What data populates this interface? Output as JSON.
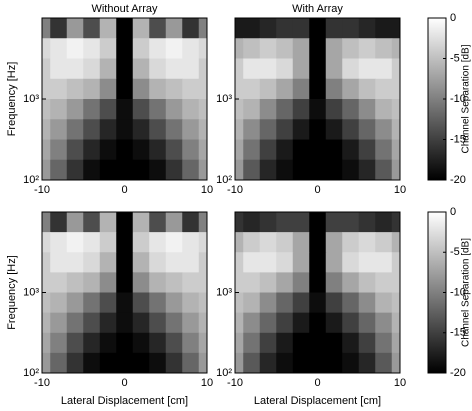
{
  "chart_data": [
    {
      "type": "heatmap",
      "title": "Without Array",
      "ylabel": "Frequency [Hz]",
      "xlim": [
        -10,
        10
      ],
      "xticks": [
        -10,
        0,
        10
      ],
      "ylim": [
        100,
        10000
      ],
      "log_y": true,
      "yticks": [
        {
          "value": 100,
          "label": "10²"
        },
        {
          "value": 1000,
          "label": "10³"
        }
      ],
      "x": [
        -10,
        -8,
        -6,
        -4,
        -2,
        0,
        2,
        4,
        6,
        8,
        10
      ],
      "y_bins": [
        10000,
        5623,
        3162,
        1778,
        1000,
        562,
        316,
        178,
        100
      ],
      "z": [
        [
          -10,
          -16,
          -8,
          -14,
          -6,
          -20,
          -6,
          -14,
          -8,
          -16,
          -10
        ],
        [
          -3,
          -2,
          -1,
          -2,
          -4,
          -20,
          -4,
          -2,
          -1,
          -2,
          -3
        ],
        [
          -4,
          -2,
          -2,
          -3,
          -6,
          -20,
          -6,
          -3,
          -2,
          -2,
          -4
        ],
        [
          -4,
          -4,
          -5,
          -6,
          -9,
          -20,
          -9,
          -6,
          -5,
          -4,
          -4
        ],
        [
          -5,
          -6,
          -8,
          -11,
          -14,
          -19,
          -14,
          -11,
          -8,
          -6,
          -5
        ],
        [
          -6,
          -8,
          -11,
          -14,
          -17,
          -19,
          -17,
          -14,
          -11,
          -8,
          -6
        ],
        [
          -7,
          -10,
          -14,
          -17,
          -19,
          -20,
          -19,
          -17,
          -14,
          -10,
          -7
        ],
        [
          -8,
          -12,
          -16,
          -19,
          -20,
          -20,
          -20,
          -19,
          -16,
          -12,
          -8
        ]
      ]
    },
    {
      "type": "heatmap",
      "title": "With Array",
      "xlim": [
        -10,
        10
      ],
      "xticks": [
        -10,
        0,
        10
      ],
      "ylim": [
        100,
        10000
      ],
      "log_y": true,
      "yticks": [
        {
          "value": 100,
          "label": "10²"
        },
        {
          "value": 1000,
          "label": "10³"
        }
      ],
      "x": [
        -10,
        -8,
        -6,
        -4,
        -2,
        0,
        2,
        4,
        6,
        8,
        10
      ],
      "y_bins": [
        10000,
        5623,
        3162,
        1778,
        1000,
        562,
        316,
        178,
        100
      ],
      "z": [
        [
          -18,
          -18,
          -17,
          -16,
          -16,
          -20,
          -16,
          -16,
          -17,
          -18,
          -18
        ],
        [
          -6,
          -5,
          -4,
          -5,
          -7,
          -20,
          -7,
          -5,
          -4,
          -5,
          -6
        ],
        [
          -4,
          -2,
          -2,
          -3,
          -7,
          -20,
          -7,
          -3,
          -2,
          -2,
          -4
        ],
        [
          -4,
          -4,
          -5,
          -7,
          -10,
          -20,
          -10,
          -7,
          -5,
          -4,
          -4
        ],
        [
          -5,
          -6,
          -9,
          -12,
          -15,
          -19,
          -15,
          -12,
          -9,
          -6,
          -5
        ],
        [
          -6,
          -9,
          -12,
          -15,
          -18,
          -20,
          -18,
          -15,
          -12,
          -9,
          -6
        ],
        [
          -7,
          -11,
          -15,
          -18,
          -20,
          -20,
          -20,
          -18,
          -15,
          -11,
          -7
        ],
        [
          -8,
          -13,
          -17,
          -19,
          -20,
          -20,
          -20,
          -19,
          -17,
          -13,
          -8
        ]
      ],
      "colorbar": {
        "label": "Channel Separation [dB]",
        "lim": [
          -20,
          0
        ],
        "ticks": [
          0,
          -5,
          -10,
          -15,
          -20
        ]
      }
    },
    {
      "type": "heatmap",
      "ylabel": "Frequency [Hz]",
      "xlabel": "Lateral Displacement [cm]",
      "xlim": [
        -10,
        10
      ],
      "xticks": [
        -10,
        0,
        10
      ],
      "ylim": [
        100,
        10000
      ],
      "log_y": true,
      "yticks": [
        {
          "value": 100,
          "label": "10²"
        },
        {
          "value": 1000,
          "label": "10³"
        }
      ],
      "x": [
        -10,
        -8,
        -6,
        -4,
        -2,
        0,
        2,
        4,
        6,
        8,
        10
      ],
      "y_bins": [
        10000,
        5623,
        3162,
        1778,
        1000,
        562,
        316,
        178,
        100
      ],
      "z": [
        [
          -10,
          -16,
          -8,
          -14,
          -6,
          -20,
          -6,
          -14,
          -8,
          -16,
          -10
        ],
        [
          -3,
          -2,
          -1,
          -2,
          -4,
          -20,
          -4,
          -2,
          -1,
          -2,
          -3
        ],
        [
          -4,
          -2,
          -2,
          -3,
          -6,
          -20,
          -6,
          -3,
          -2,
          -2,
          -4
        ],
        [
          -4,
          -4,
          -5,
          -6,
          -9,
          -20,
          -9,
          -6,
          -5,
          -4,
          -4
        ],
        [
          -5,
          -6,
          -8,
          -11,
          -14,
          -19,
          -14,
          -11,
          -8,
          -6,
          -5
        ],
        [
          -6,
          -8,
          -11,
          -14,
          -17,
          -19,
          -17,
          -14,
          -11,
          -8,
          -6
        ],
        [
          -7,
          -10,
          -14,
          -17,
          -19,
          -20,
          -19,
          -17,
          -14,
          -10,
          -7
        ],
        [
          -8,
          -12,
          -16,
          -19,
          -20,
          -20,
          -20,
          -19,
          -16,
          -12,
          -8
        ]
      ]
    },
    {
      "type": "heatmap",
      "xlabel": "Lateral Displacement [cm]",
      "xlim": [
        -10,
        10
      ],
      "xticks": [
        -10,
        0,
        10
      ],
      "ylim": [
        100,
        10000
      ],
      "log_y": true,
      "yticks": [
        {
          "value": 100,
          "label": "10²"
        },
        {
          "value": 1000,
          "label": "10³"
        }
      ],
      "x": [
        -10,
        -8,
        -6,
        -4,
        -2,
        0,
        2,
        4,
        6,
        8,
        10
      ],
      "y_bins": [
        10000,
        5623,
        3162,
        1778,
        1000,
        562,
        316,
        178,
        100
      ],
      "z": [
        [
          -16,
          -17,
          -16,
          -15,
          -15,
          -20,
          -15,
          -15,
          -16,
          -17,
          -16
        ],
        [
          -6,
          -4,
          -3,
          -4,
          -7,
          -20,
          -7,
          -4,
          -3,
          -4,
          -6
        ],
        [
          -4,
          -2,
          -2,
          -3,
          -7,
          -20,
          -7,
          -3,
          -2,
          -2,
          -4
        ],
        [
          -4,
          -4,
          -5,
          -7,
          -10,
          -20,
          -10,
          -7,
          -5,
          -4,
          -4
        ],
        [
          -5,
          -6,
          -9,
          -12,
          -15,
          -19,
          -15,
          -12,
          -9,
          -6,
          -5
        ],
        [
          -6,
          -9,
          -12,
          -15,
          -18,
          -20,
          -18,
          -15,
          -12,
          -9,
          -6
        ],
        [
          -7,
          -11,
          -15,
          -18,
          -20,
          -20,
          -20,
          -18,
          -15,
          -11,
          -7
        ],
        [
          -8,
          -13,
          -17,
          -19,
          -20,
          -20,
          -20,
          -19,
          -17,
          -13,
          -8
        ]
      ],
      "colorbar": {
        "label": "Channel Separation [dB]",
        "lim": [
          -20,
          0
        ],
        "ticks": [
          0,
          -5,
          -10,
          -15,
          -20
        ]
      }
    }
  ]
}
